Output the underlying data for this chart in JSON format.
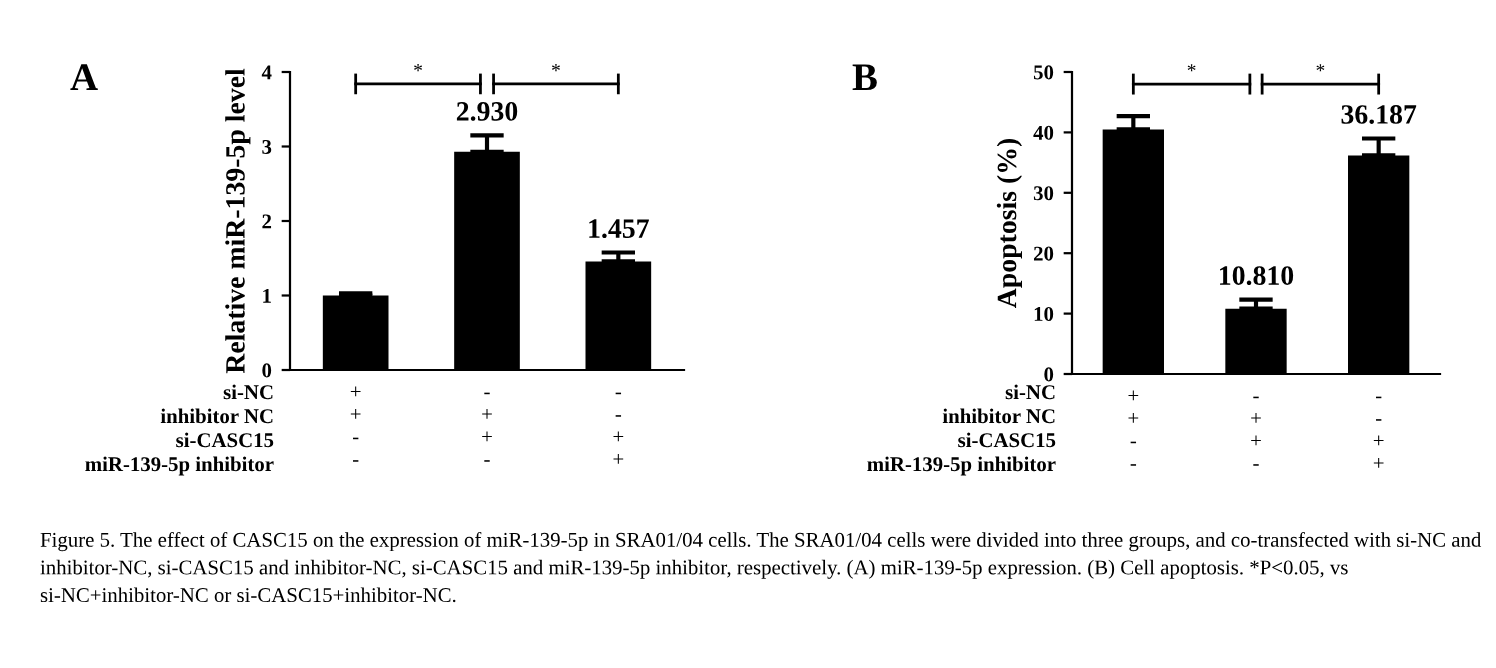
{
  "chart_data": [
    {
      "type": "bar",
      "title": "A",
      "ylabel": "Relative miR-139-5p level",
      "categories": [
        "+\n+\n-\n-",
        "-\n+\n+\n-",
        "-\n-\n+\n+"
      ],
      "values": [
        1.0,
        2.93,
        1.457
      ],
      "errors": [
        0.03,
        0.22,
        0.12
      ],
      "value_labels": [
        null,
        "2.930",
        "1.457"
      ],
      "color": "#000000",
      "ylim": [
        0,
        4
      ],
      "yticks": [
        0,
        1,
        2,
        3,
        4
      ],
      "grid": false,
      "annotations": [
        "*",
        "*",
        "si-NC",
        "inhibitor NC",
        "si-CASC15",
        "miR-139-5p inhibitor",
        "Figure 5. The effect of CASC15 on the expression of miR-139-5p in SRA01/04 cells. The SRA01/04 cells were divided into three groups, and co-transfected with si-NC and inhibitor-NC, si-CASC15 and inhibitor-NC, si-CASC15 and miR-139-5p inhibitor, respectively. (A) miR-139-5p expression. (B) Cell apoptosis. *P<0.05, vs si-NC+inhibitor-NC or si-CASC15+inhibitor-NC."
      ]
    },
    {
      "type": "bar",
      "title": "B",
      "ylabel": "Apoptosis (%)",
      "categories": [
        "+\n+\n-\n-",
        "-\n+\n+\n-",
        "-\n-\n+\n+"
      ],
      "values": [
        40.5,
        10.81,
        36.187
      ],
      "errors": [
        2.2,
        1.5,
        2.8
      ],
      "value_labels": [
        null,
        "10.810",
        "36.187"
      ],
      "color": "#000000",
      "ylim": [
        0,
        50
      ],
      "yticks": [
        0,
        10,
        20,
        30,
        40,
        50
      ],
      "grid": false,
      "annotations": [
        "*",
        "*",
        "si-NC",
        "inhibitor NC",
        "si-CASC15",
        "miR-139-5p inhibitor"
      ]
    }
  ]
}
